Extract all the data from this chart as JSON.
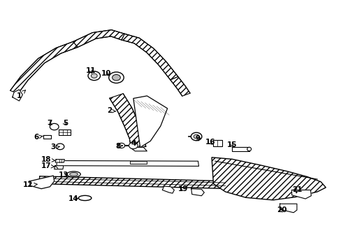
{
  "bg_color": "#ffffff",
  "line_color": "#000000",
  "fig_width": 4.89,
  "fig_height": 3.6,
  "dpi": 100,
  "parts_labels": [
    [
      1,
      0.055,
      0.62,
      0.075,
      0.645
    ],
    [
      2,
      0.32,
      0.56,
      0.345,
      0.558
    ],
    [
      3,
      0.155,
      0.415,
      0.175,
      0.418
    ],
    [
      4,
      0.39,
      0.43,
      0.405,
      0.435
    ],
    [
      5,
      0.19,
      0.51,
      0.2,
      0.5
    ],
    [
      6,
      0.105,
      0.455,
      0.125,
      0.46
    ],
    [
      7,
      0.145,
      0.51,
      0.157,
      0.5
    ],
    [
      8,
      0.345,
      0.42,
      0.36,
      0.422
    ],
    [
      9,
      0.58,
      0.45,
      0.575,
      0.455
    ],
    [
      10,
      0.31,
      0.71,
      0.325,
      0.695
    ],
    [
      11,
      0.265,
      0.72,
      0.27,
      0.7
    ],
    [
      12,
      0.08,
      0.265,
      0.11,
      0.268
    ],
    [
      13,
      0.185,
      0.305,
      0.205,
      0.308
    ],
    [
      14,
      0.215,
      0.21,
      0.235,
      0.213
    ],
    [
      15,
      0.68,
      0.425,
      0.688,
      0.412
    ],
    [
      16,
      0.615,
      0.435,
      0.628,
      0.42
    ],
    [
      17,
      0.135,
      0.34,
      0.16,
      0.338
    ],
    [
      18,
      0.135,
      0.365,
      0.162,
      0.362
    ],
    [
      19,
      0.535,
      0.25,
      0.52,
      0.258
    ],
    [
      20,
      0.825,
      0.165,
      0.83,
      0.18
    ],
    [
      21,
      0.87,
      0.245,
      0.868,
      0.23
    ]
  ]
}
